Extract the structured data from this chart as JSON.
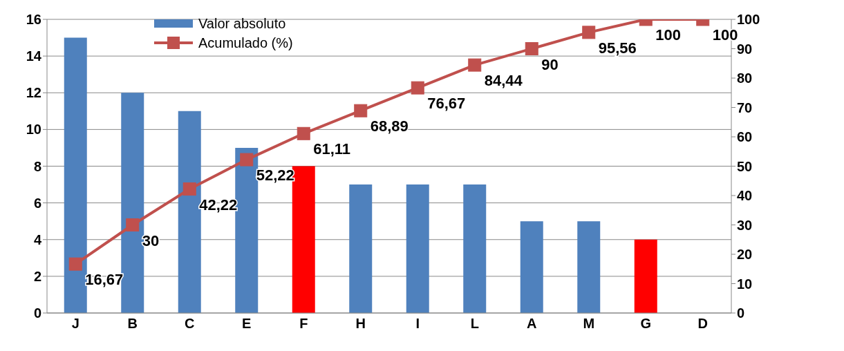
{
  "chart_data": {
    "type": "bar",
    "categories": [
      "J",
      "B",
      "C",
      "E",
      "F",
      "H",
      "I",
      "L",
      "A",
      "M",
      "G",
      "D"
    ],
    "series": [
      {
        "name": "Valor absoluto",
        "colors": [
          "#4f81bd",
          "#4f81bd",
          "#4f81bd",
          "#4f81bd",
          "#ff0000",
          "#4f81bd",
          "#4f81bd",
          "#4f81bd",
          "#4f81bd",
          "#4f81bd",
          "#ff0000",
          "#4f81bd"
        ],
        "values": [
          15,
          12,
          11,
          9,
          8,
          7,
          7,
          7,
          5,
          5,
          4,
          0
        ]
      },
      {
        "name": "Acumulado (%)",
        "type": "line",
        "axis": "y2",
        "color": "#c0504d",
        "marker": "square",
        "values": [
          16.67,
          30,
          42.22,
          52.22,
          61.11,
          68.89,
          76.67,
          84.44,
          90,
          95.56,
          100,
          100
        ],
        "value_labels": [
          "16,67",
          "30",
          "42,22",
          "52,22",
          "61,11",
          "68,89",
          "76,67",
          "84,44",
          "90",
          "95,56",
          "100",
          "100"
        ]
      }
    ],
    "ylim": [
      0,
      16
    ],
    "yticks": [
      0,
      2,
      4,
      6,
      8,
      10,
      12,
      14,
      16
    ],
    "y2lim": [
      0,
      100
    ],
    "y2ticks": [
      0,
      10,
      20,
      30,
      40,
      50,
      60,
      70,
      80,
      90,
      100
    ],
    "grid": "y",
    "legend": "top left"
  }
}
